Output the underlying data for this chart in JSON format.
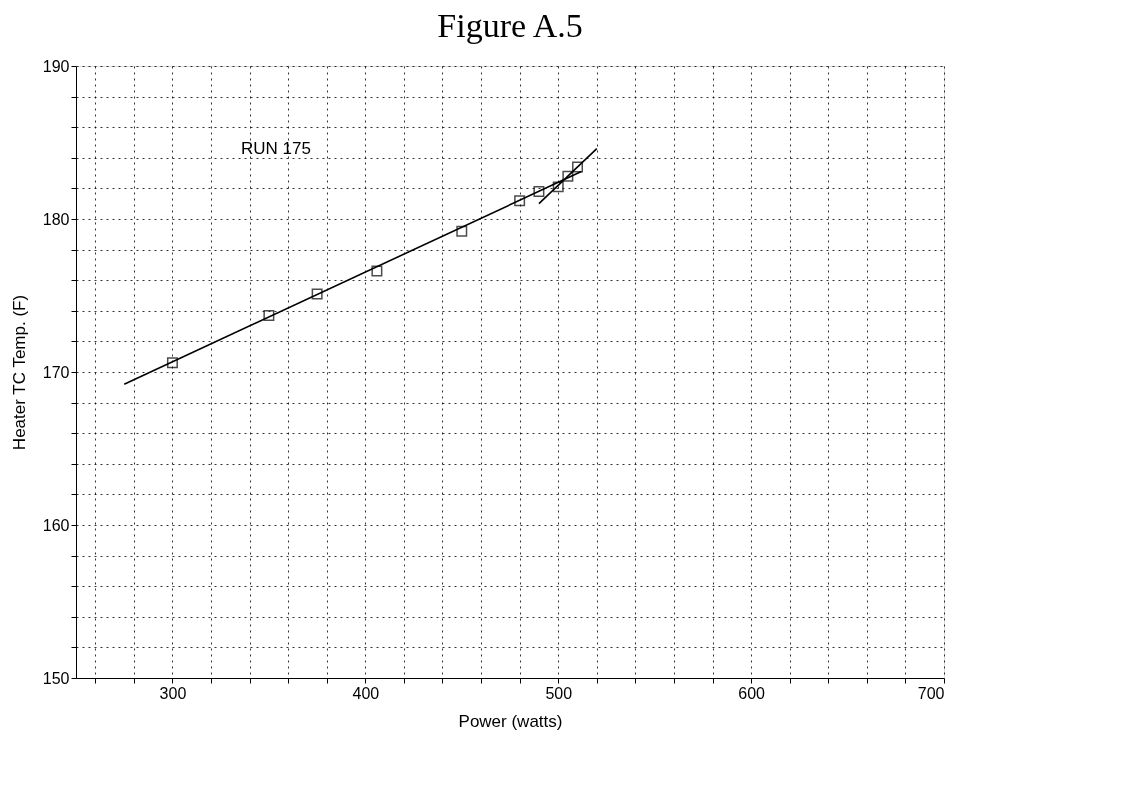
{
  "chart_data": {
    "type": "scatter",
    "title": "Figure A.5",
    "xlabel": "Power (watts)",
    "ylabel": "Heater TC Temp. (F)",
    "xlim": [
      250,
      700
    ],
    "ylim": [
      150,
      190
    ],
    "xticks": [
      {
        "value": 260,
        "label": null
      },
      {
        "value": 280,
        "label": null
      },
      300,
      {
        "value": 320,
        "label": null
      },
      {
        "value": 340,
        "label": null
      },
      {
        "value": 360,
        "label": null
      },
      {
        "value": 380,
        "label": null
      },
      400,
      {
        "value": 420,
        "label": null
      },
      {
        "value": 440,
        "label": null
      },
      {
        "value": 460,
        "label": null
      },
      {
        "value": 480,
        "label": null
      },
      500,
      {
        "value": 520,
        "label": null
      },
      {
        "value": 540,
        "label": null
      },
      {
        "value": 560,
        "label": null
      },
      {
        "value": 580,
        "label": null
      },
      600,
      {
        "value": 620,
        "label": null
      },
      {
        "value": 640,
        "label": null
      },
      {
        "value": 660,
        "label": null
      },
      {
        "value": 680,
        "label": null
      },
      700
    ],
    "yticks": [
      150,
      {
        "value": 152,
        "label": null
      },
      {
        "value": 154,
        "label": null
      },
      {
        "value": 156,
        "label": null
      },
      {
        "value": 158,
        "label": null
      },
      160,
      {
        "value": 162,
        "label": null
      },
      {
        "value": 164,
        "label": null
      },
      {
        "value": 166,
        "label": null
      },
      {
        "value": 168,
        "label": null
      },
      170,
      {
        "value": 172,
        "label": null
      },
      {
        "value": 174,
        "label": null
      },
      {
        "value": 176,
        "label": null
      },
      {
        "value": 178,
        "label": null
      },
      180,
      {
        "value": 182,
        "label": null
      },
      {
        "value": 184,
        "label": null
      },
      {
        "value": 186,
        "label": null
      },
      {
        "value": 188,
        "label": null
      },
      190
    ],
    "grid": true,
    "marker": "square",
    "annotations": [
      "RUN 175"
    ],
    "series": [
      {
        "color": "#000000",
        "x": [
          300,
          350,
          375,
          406,
          450,
          480,
          490,
          500,
          505,
          510
        ],
        "values": [
          170.6,
          173.7,
          175.1,
          176.6,
          179.2,
          181.2,
          181.8,
          182.1,
          182.8,
          183.4
        ]
      },
      {
        "type": "line",
        "color": "#000000",
        "marker": "none",
        "x": [
          275,
          512
        ],
        "values": [
          169.2,
          183.1
        ]
      },
      {
        "type": "line",
        "color": "#000000",
        "marker": "none",
        "x": [
          490,
          520
        ],
        "values": [
          181.0,
          184.6
        ]
      }
    ]
  }
}
